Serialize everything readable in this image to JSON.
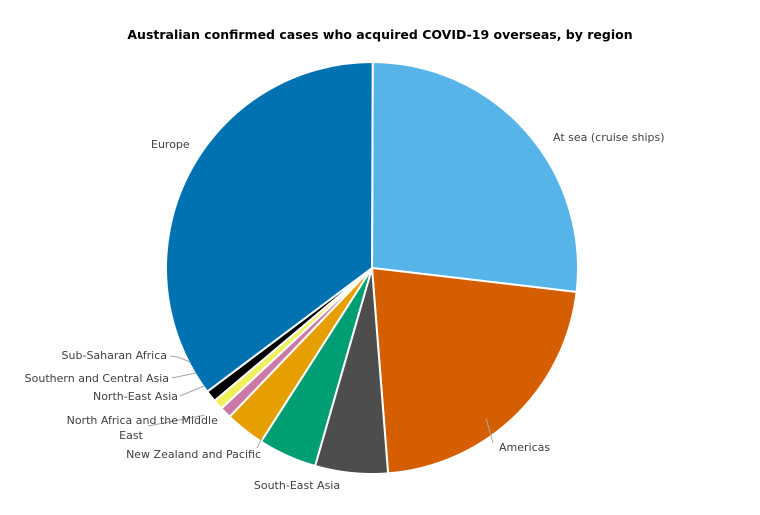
{
  "chart_data": {
    "type": "pie",
    "title": "Australian confirmed cases who acquired COVID-19 overseas, by region",
    "legend": "none",
    "unit": "percent of overseas-acquired cases (estimated)",
    "categories": [
      "At sea (cruise ships)",
      "Americas",
      "South-East Asia",
      "New Zealand and Pacific",
      "North Africa and the Middle East",
      "North-East Asia",
      "Southern and Central Asia",
      "Sub-Saharan Africa",
      "Europe"
    ],
    "values": [
      26.8,
      21.9,
      5.7,
      4.6,
      3.1,
      0.9,
      0.8,
      0.9,
      35.3
    ],
    "colors": [
      "#56b4e9",
      "#d55e00",
      "#4d4d4d",
      "#009e73",
      "#e69f00",
      "#cc79a7",
      "#f0f05a",
      "#000000",
      "#0072b2"
    ]
  }
}
